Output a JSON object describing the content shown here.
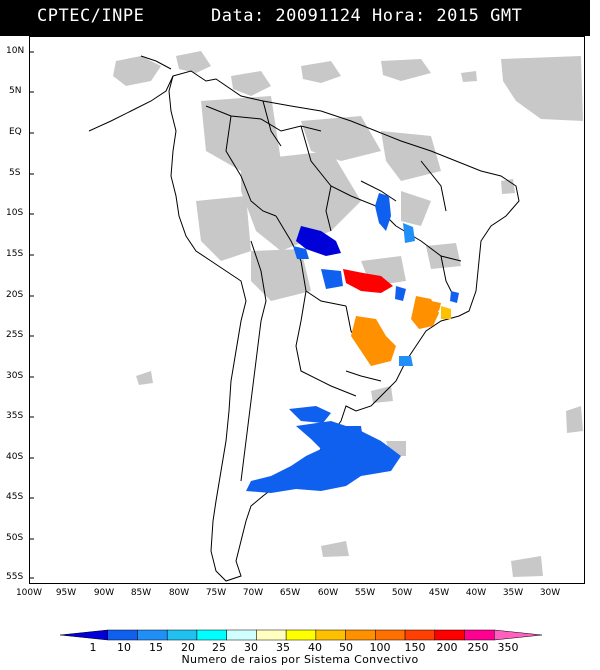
{
  "header": {
    "source": "CPTEC/INPE",
    "datetime": "Data: 20091124 Hora: 2015 GMT"
  },
  "axes": {
    "lat_labels": [
      "10N",
      "5N",
      "EQ",
      "5S",
      "10S",
      "15S",
      "20S",
      "25S",
      "30S",
      "35S",
      "40S",
      "45S",
      "50S",
      "55S"
    ],
    "lon_labels": [
      "100W",
      "95W",
      "90W",
      "85W",
      "80W",
      "75W",
      "70W",
      "65W",
      "60W",
      "55W",
      "50W",
      "45W",
      "40W",
      "35W",
      "30W"
    ]
  },
  "colorbar": {
    "title": "Numero de raios por Sistema Convectivo",
    "ticks": [
      "1",
      "10",
      "15",
      "20",
      "25",
      "30",
      "35",
      "40",
      "50",
      "100",
      "150",
      "200",
      "250",
      "350"
    ],
    "colors": [
      "#0000d8",
      "#1060f0",
      "#2090f8",
      "#20c0f0",
      "#00ffff",
      "#d0ffff",
      "#ffffc0",
      "#ffff00",
      "#ffc000",
      "#ff9000",
      "#ff7000",
      "#ff4000",
      "#ff0000",
      "#ff0090",
      "#ff60c0"
    ]
  },
  "legend_colors": {
    "cloud": "#c8c8c8",
    "coast": "#000000"
  }
}
